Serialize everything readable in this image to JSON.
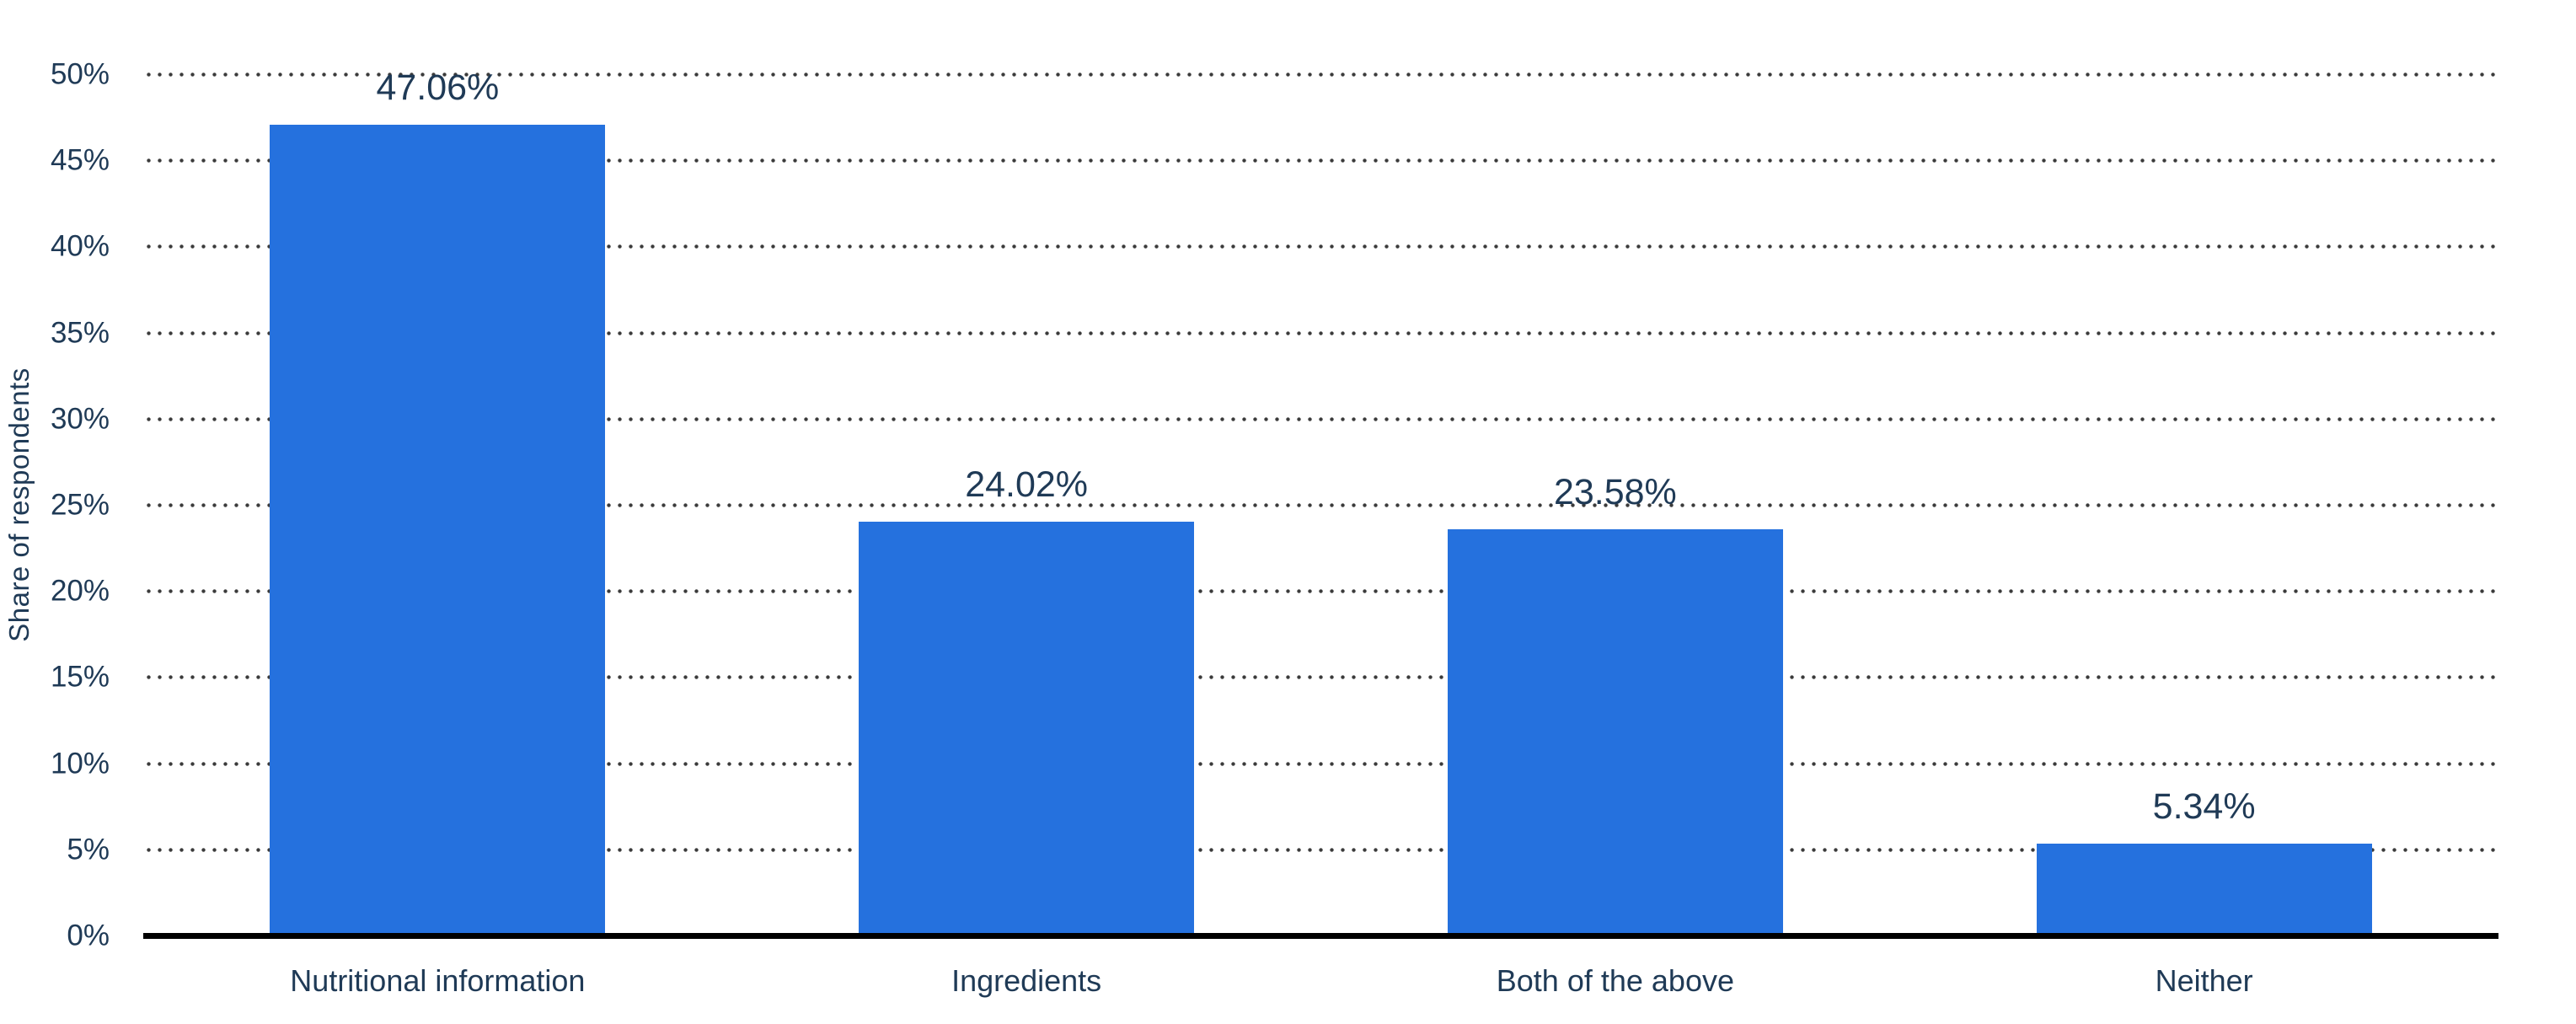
{
  "page": {
    "background": "#FFFFFF"
  },
  "chart_data": {
    "type": "bar",
    "title": "",
    "xlabel": "",
    "ylabel": "Share of respondents",
    "categories": [
      "Nutritional information",
      "Ingredients",
      "Both of the above",
      "Neither"
    ],
    "values": [
      47.06,
      24.02,
      23.58,
      5.34
    ],
    "value_labels": [
      "47.06%",
      "24.02%",
      "23.58%",
      "5.34%"
    ],
    "ylim": [
      0,
      50
    ],
    "ytick_step": 5,
    "ytick_labels": [
      "0%",
      "5%",
      "10%",
      "15%",
      "20%",
      "25%",
      "30%",
      "35%",
      "40%",
      "45%",
      "50%"
    ],
    "grid": "horizontal-dotted",
    "legend": "none",
    "bar_width_fraction": 0.57,
    "colors": {
      "bar": "#2571DE",
      "text": "#1F3A56",
      "grid_dots": "#3B3B3B",
      "axis_line": "#000000",
      "background": "#FFFFFF"
    }
  }
}
